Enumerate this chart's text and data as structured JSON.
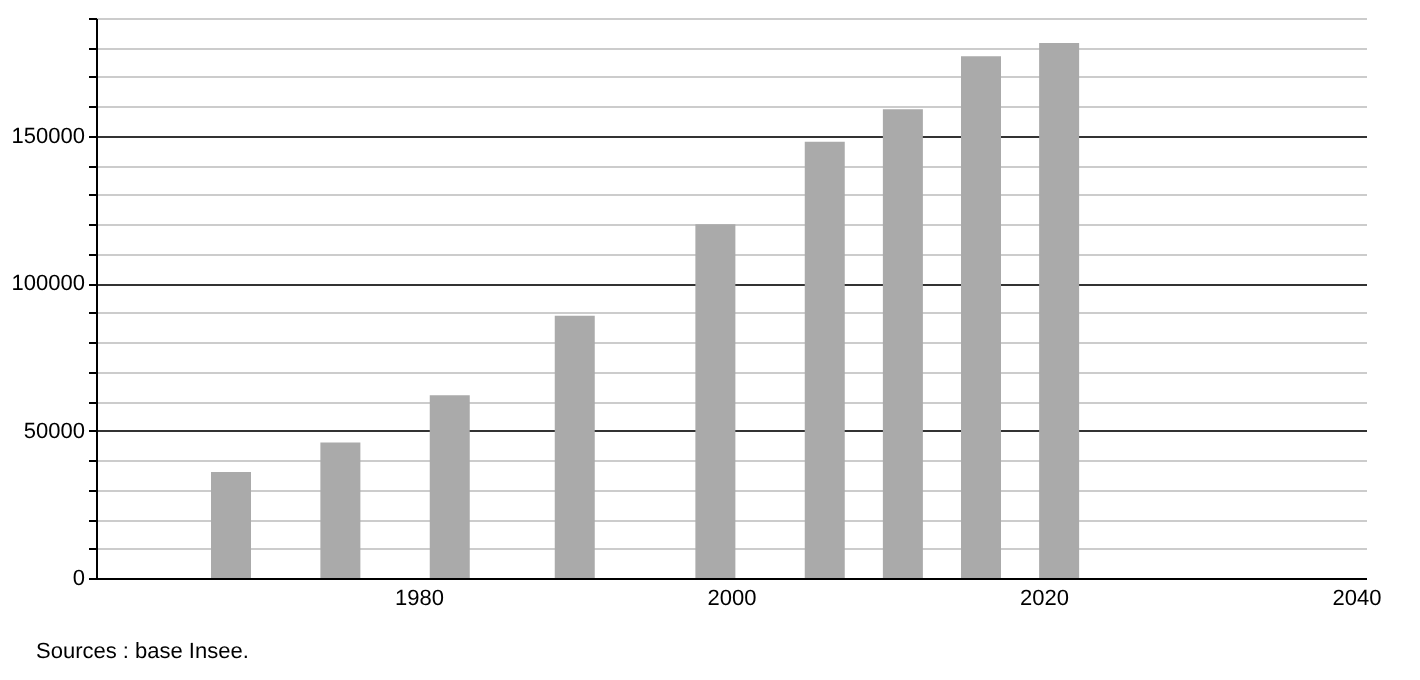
{
  "chart_data": {
    "type": "bar",
    "x": [
      1968,
      1975,
      1982,
      1990,
      1999,
      2006,
      2011,
      2016,
      2021
    ],
    "values": [
      36000,
      46000,
      62000,
      89000,
      120000,
      148000,
      159000,
      177000,
      181500
    ],
    "color": "#aaaaaa",
    "xlim": [
      1960,
      2040
    ],
    "xticks": [
      1980,
      2000,
      2020,
      2040
    ],
    "ylim": [
      0,
      190000
    ],
    "yticks": [
      0,
      {
        "value": 10000,
        "label": null
      },
      {
        "value": 20000,
        "label": null
      },
      {
        "value": 30000,
        "label": null
      },
      {
        "value": 40000,
        "label": null
      },
      50000,
      {
        "value": 60000,
        "label": null
      },
      {
        "value": 70000,
        "label": null
      },
      {
        "value": 80000,
        "label": null
      },
      {
        "value": 90000,
        "label": null
      },
      100000,
      {
        "value": 110000,
        "label": null
      },
      {
        "value": 120000,
        "label": null
      },
      {
        "value": 130000,
        "label": null
      },
      {
        "value": 140000,
        "label": null
      },
      150000,
      {
        "value": 160000,
        "label": null
      },
      {
        "value": 170000,
        "label": null
      },
      {
        "value": 180000,
        "label": null
      },
      {
        "value": 190000,
        "label": null
      }
    ],
    "grid": true,
    "annotations": [
      "Sources : base Insee."
    ]
  }
}
